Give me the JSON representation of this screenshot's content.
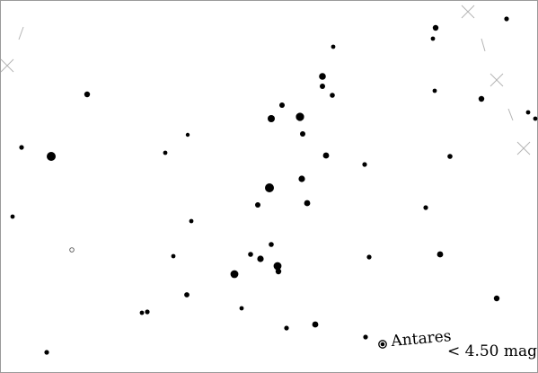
{
  "map": {
    "star_label": "Antares",
    "magnitude_limit": "< 4.50 mag"
  }
}
